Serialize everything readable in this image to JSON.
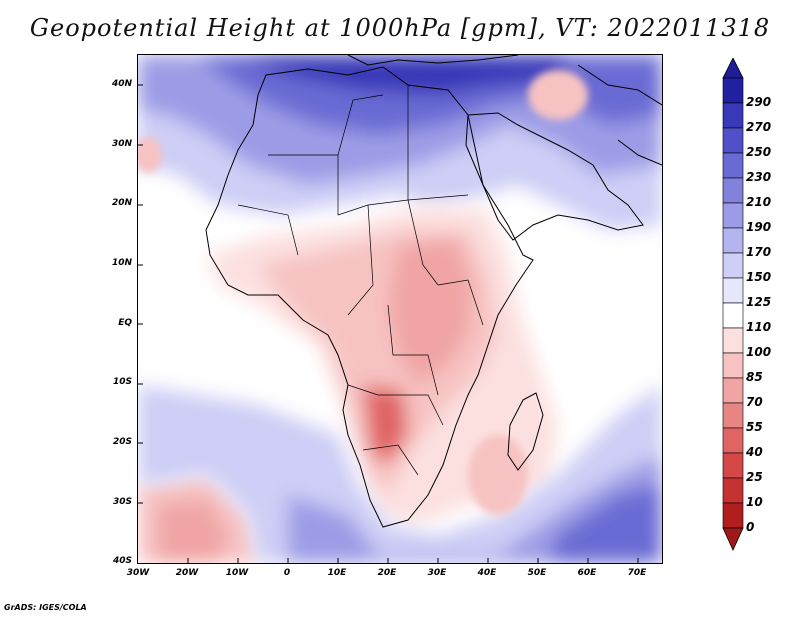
{
  "title": "Geopotential Height at 1000hPa [gpm], VT: 2022011318",
  "footer": "GrADS: IGES/COLA",
  "map": {
    "projection": "latlon",
    "lon_range": [
      -30,
      75
    ],
    "lat_range": [
      -40,
      45
    ],
    "lat_labels": [
      "40N",
      "30N",
      "20N",
      "10N",
      "EQ",
      "10S",
      "20S",
      "30S",
      "40S"
    ],
    "lon_labels": [
      "30W",
      "20W",
      "10W",
      "0",
      "10E",
      "20E",
      "30E",
      "40E",
      "50E",
      "60E",
      "70E"
    ],
    "features": [
      "coastlines",
      "country-borders"
    ]
  },
  "colorbar": {
    "levels": [
      "290",
      "270",
      "250",
      "230",
      "210",
      "190",
      "170",
      "150",
      "125",
      "110",
      "100",
      "85",
      "70",
      "55",
      "40",
      "25",
      "10",
      "0"
    ],
    "colors": [
      "#2020a0",
      "#3838b8",
      "#5050c8",
      "#6a6ad4",
      "#8282dc",
      "#9c9ce6",
      "#b4b4ee",
      "#cecef6",
      "#e6e6fc",
      "#ffffff",
      "#fce0e0",
      "#f7c2c2",
      "#f0a4a4",
      "#e88686",
      "#e06464",
      "#d44848",
      "#c63232",
      "#b01e1e"
    ]
  },
  "colors": {
    "top_triangle": "#1e1e96",
    "bottom_triangle": "#a01818"
  }
}
